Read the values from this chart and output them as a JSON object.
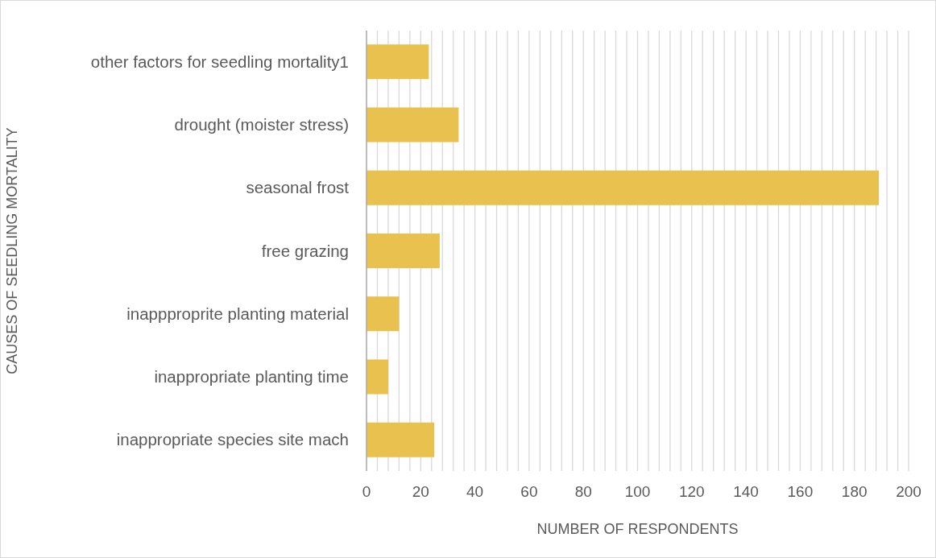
{
  "chart_data": {
    "type": "bar",
    "orientation": "horizontal",
    "xlabel": "NUMBER OF RESPONDENTS",
    "ylabel": "CAUSES OF SEEDLING MORTALITY",
    "categories": [
      "other factors for seedling mortality1",
      "drought (moister stress)",
      "seasonal frost",
      "free grazing",
      "inappproprite planting material",
      "inappropriate planting time",
      "inappropriate species site mach"
    ],
    "values": [
      23,
      34,
      189,
      27,
      12,
      8,
      25
    ],
    "color": "#e8c14e",
    "xlim": [
      0,
      200
    ],
    "xticks": [
      0,
      {
        "value": 4,
        "label": null
      },
      {
        "value": 8,
        "label": null
      },
      {
        "value": 12,
        "label": null
      },
      {
        "value": 16,
        "label": null
      },
      20,
      {
        "value": 24,
        "label": null
      },
      {
        "value": 28,
        "label": null
      },
      {
        "value": 32,
        "label": null
      },
      {
        "value": 36,
        "label": null
      },
      40,
      {
        "value": 44,
        "label": null
      },
      {
        "value": 48,
        "label": null
      },
      {
        "value": 52,
        "label": null
      },
      {
        "value": 56,
        "label": null
      },
      60,
      {
        "value": 64,
        "label": null
      },
      {
        "value": 68,
        "label": null
      },
      {
        "value": 72,
        "label": null
      },
      {
        "value": 76,
        "label": null
      },
      80,
      {
        "value": 84,
        "label": null
      },
      {
        "value": 88,
        "label": null
      },
      {
        "value": 92,
        "label": null
      },
      {
        "value": 96,
        "label": null
      },
      100,
      {
        "value": 104,
        "label": null
      },
      {
        "value": 108,
        "label": null
      },
      {
        "value": 112,
        "label": null
      },
      {
        "value": 116,
        "label": null
      },
      120,
      {
        "value": 124,
        "label": null
      },
      {
        "value": 128,
        "label": null
      },
      {
        "value": 132,
        "label": null
      },
      {
        "value": 136,
        "label": null
      },
      140,
      {
        "value": 144,
        "label": null
      },
      {
        "value": 148,
        "label": null
      },
      {
        "value": 152,
        "label": null
      },
      {
        "value": 156,
        "label": null
      },
      160,
      {
        "value": 164,
        "label": null
      },
      {
        "value": 168,
        "label": null
      },
      {
        "value": 172,
        "label": null
      },
      {
        "value": 176,
        "label": null
      },
      180,
      {
        "value": 184,
        "label": null
      },
      {
        "value": 188,
        "label": null
      },
      {
        "value": 192,
        "label": null
      },
      {
        "value": 196,
        "label": null
      },
      200
    ],
    "grid": "x"
  }
}
